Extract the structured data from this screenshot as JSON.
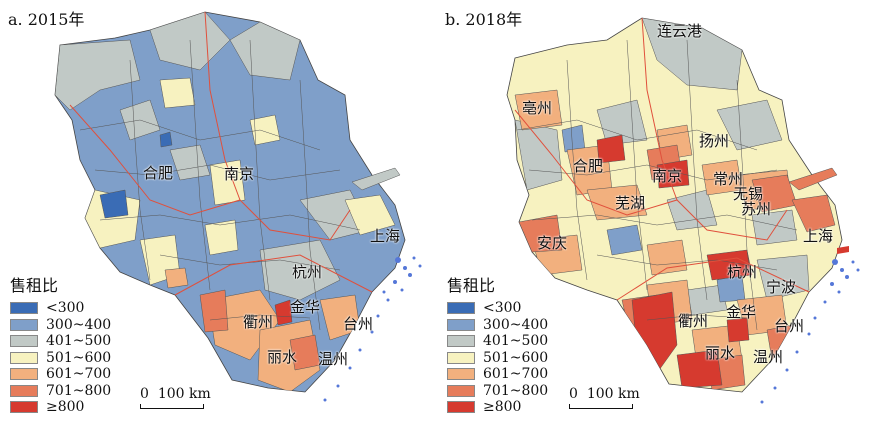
{
  "panels": [
    {
      "title": "a. 2015年",
      "cities": [
        "合肥",
        "南京",
        "上海",
        "杭州",
        "衢州",
        "金华",
        "台州",
        "丽水",
        "温州"
      ]
    },
    {
      "title": "b. 2018年",
      "cities": [
        "连云港",
        "亳州",
        "扬州",
        "合肥",
        "南京",
        "常州",
        "无锡",
        "芜湖",
        "苏州",
        "安庆",
        "上海",
        "杭州",
        "宁波",
        "衢州",
        "金华",
        "台州",
        "丽水",
        "温州"
      ]
    }
  ],
  "legend": {
    "title": "售租比",
    "items": [
      {
        "label": "<300",
        "color": "#3a6cb5"
      },
      {
        "label": "300~400",
        "color": "#7f9fc9"
      },
      {
        "label": "401~500",
        "color": "#c1c9c6"
      },
      {
        "label": "501~600",
        "color": "#f7f2c0"
      },
      {
        "label": "601~700",
        "color": "#f2b07e"
      },
      {
        "label": "701~800",
        "color": "#e67c5b"
      },
      {
        "label": "≥800",
        "color": "#d63a2f"
      }
    ]
  },
  "scale": {
    "zero": "0",
    "label": "100 km"
  },
  "colors": {
    "water": "#5577d8",
    "boundary": "#e0503c"
  }
}
